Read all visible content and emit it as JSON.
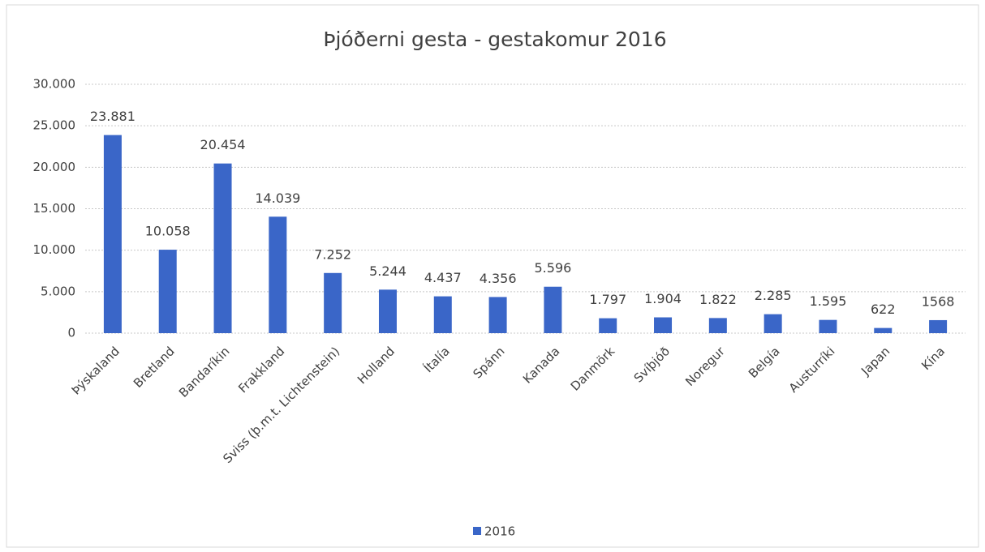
{
  "chart_data": {
    "type": "bar",
    "title": "Þjóðerni gesta - gestakomur 2016",
    "categories": [
      "Þýskaland",
      "Bretland",
      "Bandaríkin",
      "Frakkland",
      "Sviss (þ.m.t. Lichtenstein)",
      "Holland",
      "Ítalía",
      "Spánn",
      "Kanada",
      "Danmörk",
      "Svíþjóð",
      "Noregur",
      "Belgía",
      "Austurríki",
      "Japan",
      "Kína"
    ],
    "series": [
      {
        "name": "2016",
        "color": "#3a66c8",
        "values": [
          23881,
          10058,
          20454,
          14039,
          7252,
          5244,
          4437,
          4356,
          5596,
          1797,
          1904,
          1822,
          2285,
          1595,
          622,
          1568
        ],
        "value_labels": [
          "23.881",
          "10.058",
          "20.454",
          "14.039",
          "7.252",
          "5.244",
          "4.437",
          "4.356",
          "5.596",
          "1.797",
          "1.904",
          "1.822",
          "2.285",
          "1.595",
          "622",
          "1568"
        ]
      }
    ],
    "ylim": [
      0,
      30000
    ],
    "yticks": [
      0,
      {
        "value": 5000,
        "label": "5.000"
      },
      {
        "value": 10000,
        "label": "10.000"
      },
      {
        "value": 15000,
        "label": "15.000"
      },
      {
        "value": 20000,
        "label": "20.000"
      },
      {
        "value": 25000,
        "label": "25.000"
      },
      {
        "value": 30000,
        "label": "30.000"
      }
    ],
    "grid": true,
    "legend": "bottom"
  }
}
